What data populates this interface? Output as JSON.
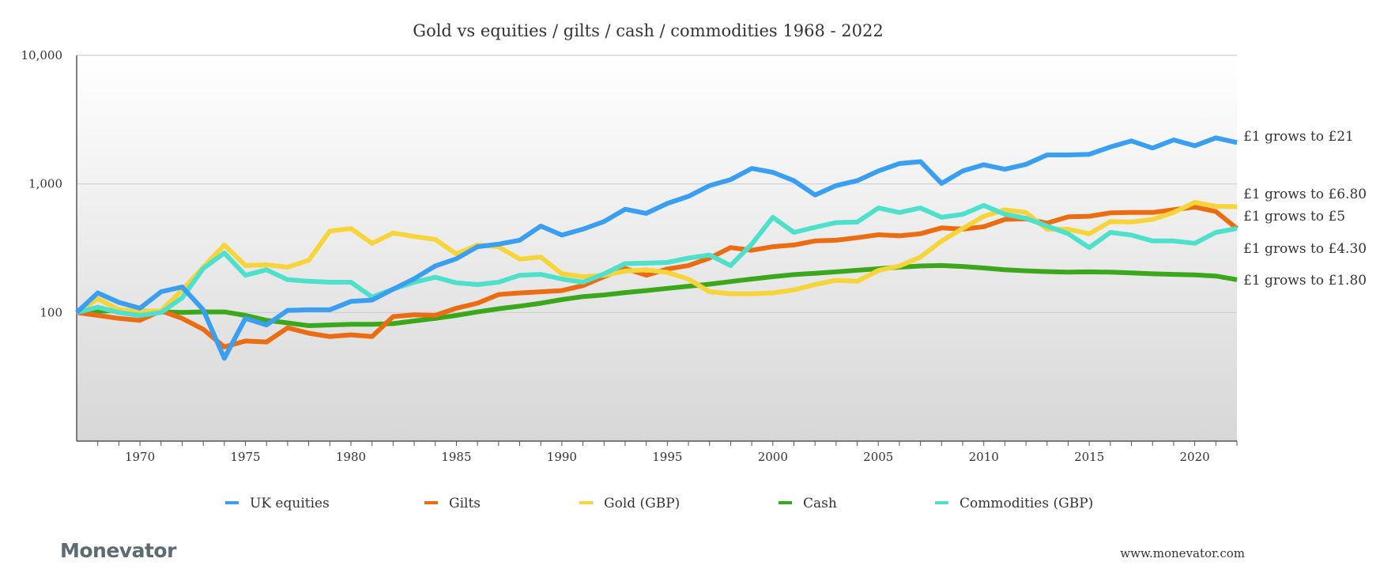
{
  "chart_data": {
    "type": "line",
    "title": "Gold vs equities / gilts / cash / commodities 1968 - 2022",
    "xlabel": "",
    "ylabel": "",
    "xlim": [
      1967,
      2022
    ],
    "ylim": [
      10,
      10000
    ],
    "y_scale": "log",
    "grid": true,
    "legend": "bottom",
    "x_ticks": [
      1970,
      1975,
      1980,
      1985,
      1990,
      1995,
      2000,
      2005,
      2010,
      2015,
      2020
    ],
    "x_tick_labels": [
      "1970",
      "1975",
      "1980",
      "1985",
      "1990",
      "1995",
      "2000",
      "2005",
      "2010",
      "2015",
      "2020"
    ],
    "y_ticks": [
      100,
      1000,
      10000
    ],
    "y_tick_labels": [
      "100",
      "1,000",
      "10,000"
    ],
    "x": [
      1967,
      1968,
      1969,
      1970,
      1971,
      1972,
      1973,
      1974,
      1975,
      1976,
      1977,
      1978,
      1979,
      1980,
      1981,
      1982,
      1983,
      1984,
      1985,
      1986,
      1987,
      1988,
      1989,
      1990,
      1991,
      1992,
      1993,
      1994,
      1995,
      1996,
      1997,
      1998,
      1999,
      2000,
      2001,
      2002,
      2003,
      2004,
      2005,
      2006,
      2007,
      2008,
      2009,
      2010,
      2011,
      2012,
      2013,
      2014,
      2015,
      2016,
      2017,
      2018,
      2019,
      2020,
      2021,
      2022
    ],
    "series": [
      {
        "name": "UK equities",
        "color": "#3a9ff0",
        "end_label": "£1 grows to £21",
        "values": [
          100,
          142,
          120,
          108,
          145,
          158,
          105,
          44,
          90,
          80,
          104,
          105,
          105,
          122,
          125,
          152,
          183,
          230,
          262,
          325,
          340,
          365,
          470,
          400,
          445,
          510,
          635,
          590,
          705,
          800,
          970,
          1080,
          1320,
          1230,
          1060,
          820,
          970,
          1060,
          1260,
          1440,
          1490,
          1010,
          1260,
          1410,
          1300,
          1420,
          1680,
          1680,
          1700,
          1940,
          2160,
          1900,
          2200,
          1980,
          2280,
          2100
        ]
      },
      {
        "name": "Gilts",
        "color": "#ec6c12",
        "end_label": "£1 grows to £5",
        "values": [
          100,
          95,
          90,
          87,
          103,
          90,
          74,
          54,
          60,
          59,
          76,
          69,
          65,
          67,
          65,
          93,
          96,
          95,
          108,
          118,
          138,
          142,
          145,
          148,
          162,
          190,
          220,
          195,
          218,
          232,
          265,
          320,
          305,
          325,
          335,
          360,
          365,
          382,
          402,
          395,
          410,
          455,
          445,
          465,
          530,
          535,
          495,
          555,
          560,
          595,
          600,
          600,
          630,
          660,
          610,
          450
        ]
      },
      {
        "name": "Gold (GBP)",
        "color": "#f7d53a",
        "end_label": "£1 grows to £6.80",
        "values": [
          100,
          128,
          105,
          102,
          103,
          150,
          225,
          335,
          232,
          235,
          225,
          255,
          430,
          450,
          345,
          415,
          390,
          370,
          285,
          335,
          325,
          260,
          270,
          200,
          190,
          195,
          210,
          215,
          205,
          182,
          145,
          140,
          140,
          142,
          150,
          165,
          178,
          175,
          212,
          230,
          270,
          360,
          450,
          560,
          630,
          600,
          445,
          445,
          410,
          510,
          505,
          530,
          600,
          720,
          670,
          665
        ]
      },
      {
        "name": "Cash",
        "color": "#3aa81a",
        "end_label": "£1 grows to £1.80",
        "values": [
          100,
          102,
          104,
          103,
          101,
          100,
          101,
          101,
          95,
          87,
          83,
          79,
          80,
          81,
          81,
          82,
          86,
          90,
          95,
          101,
          107,
          112,
          118,
          126,
          133,
          137,
          143,
          148,
          154,
          160,
          166,
          174,
          182,
          190,
          197,
          202,
          207,
          213,
          219,
          225,
          230,
          232,
          228,
          222,
          215,
          211,
          208,
          206,
          207,
          206,
          203,
          200,
          198,
          196,
          192,
          180
        ]
      },
      {
        "name": "Commodities (GBP)",
        "color": "#4fe0cc",
        "end_label": "£1 grows to £4.30",
        "values": [
          100,
          110,
          100,
          95,
          100,
          130,
          220,
          290,
          195,
          215,
          180,
          175,
          172,
          172,
          132,
          152,
          172,
          188,
          170,
          165,
          172,
          195,
          198,
          182,
          172,
          200,
          240,
          242,
          245,
          265,
          280,
          232,
          340,
          550,
          420,
          460,
          500,
          505,
          650,
          600,
          650,
          550,
          580,
          680,
          580,
          540,
          470,
          410,
          320,
          420,
          400,
          360,
          360,
          345,
          420,
          450
        ]
      }
    ]
  },
  "brand": {
    "logo_text": "Monevator"
  },
  "footer": {
    "url": "www.monevator.com"
  }
}
